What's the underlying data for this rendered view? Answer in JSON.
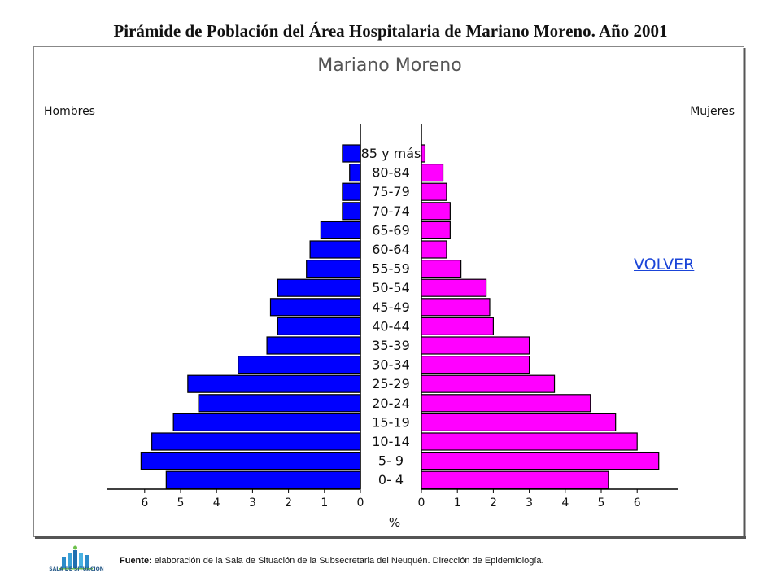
{
  "page_title": "Pirámide de Población del Área Hospitalaria de Mariano Moreno. Año 2001",
  "volver_label": "VOLVER",
  "source": {
    "label": "Fuente:",
    "text": " elaboración de la Sala de Situación de la Subsecretaria del Neuquén. Dirección de Epidemiología."
  },
  "logo_text": "SALA DE SITUACIÓN",
  "colors": {
    "men": "#0000ff",
    "women": "#ff00ff",
    "link": "#1a44d8"
  },
  "chart_data": {
    "type": "bar",
    "orientation": "horizontal-pyramid",
    "title": "Mariano Moreno",
    "xlabel": "%",
    "left_label": "Hombres",
    "right_label": "Mujeres",
    "categories": [
      "85 y más",
      "80-84",
      "75-79",
      "70-74",
      "65-69",
      "60-64",
      "55-59",
      "50-54",
      "45-49",
      "40-44",
      "35-39",
      "30-34",
      "25-29",
      "20-24",
      "15-19",
      "10-14",
      "5- 9",
      "0- 4"
    ],
    "series": [
      {
        "name": "Hombres",
        "values": [
          0.5,
          0.3,
          0.5,
          0.5,
          1.1,
          1.4,
          1.5,
          2.3,
          2.5,
          2.3,
          2.6,
          3.4,
          4.8,
          4.5,
          5.2,
          5.8,
          6.1,
          5.4
        ]
      },
      {
        "name": "Mujeres",
        "values": [
          0.1,
          0.6,
          0.7,
          0.8,
          0.8,
          0.7,
          1.1,
          1.8,
          1.9,
          2.0,
          3.0,
          3.0,
          3.7,
          4.7,
          5.4,
          6.0,
          6.6,
          5.2
        ]
      }
    ],
    "x_ticks_left": [
      "6",
      "5",
      "4",
      "3",
      "2",
      "1",
      "0"
    ],
    "x_ticks_right": [
      "0",
      "1",
      "2",
      "3",
      "4",
      "5",
      "6"
    ],
    "xlim": [
      0,
      6.5
    ],
    "grid": false
  }
}
